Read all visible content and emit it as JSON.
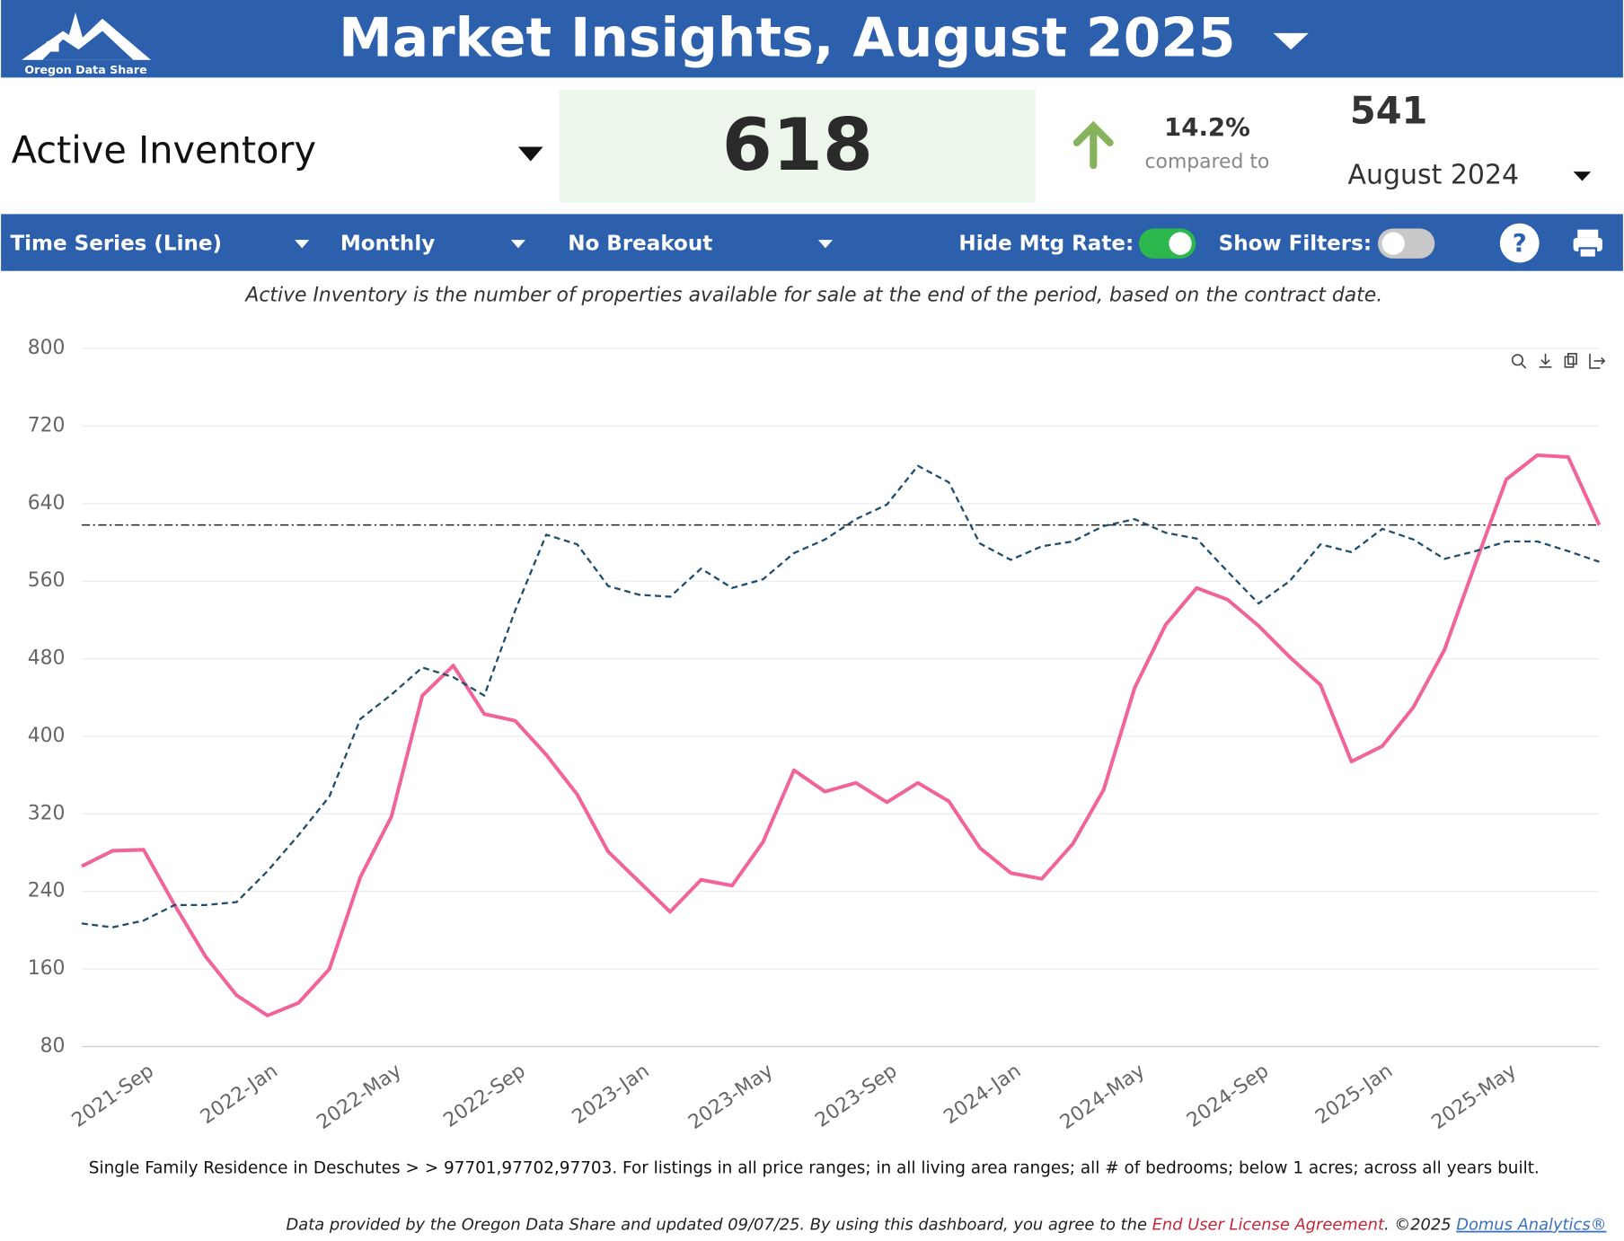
{
  "header": {
    "logo_text": "Oregon Data Share",
    "title": "Market Insights, August 2025"
  },
  "kpi": {
    "metric": "Active Inventory",
    "value": 618,
    "change": "14.2%",
    "compared_label": "compared to",
    "comparison_value": 541,
    "comparison_period": "August 2024"
  },
  "toolbar": {
    "chart_type": "Time Series (Line)",
    "frequency": "Monthly",
    "breakout": "No Breakout",
    "mtg_toggle": "Hide Mtg Rate:",
    "filters_toggle": "Show Filters:"
  },
  "description": "Active Inventory is the number of properties available for sale at the end of the period, based on the contract date.",
  "chart_data": {
    "type": "line",
    "categories": [
      null,
      null,
      "2021-Sep",
      null,
      null,
      null,
      "2022-Jan",
      null,
      null,
      null,
      "2022-May",
      null,
      null,
      null,
      "2022-Sep",
      null,
      null,
      null,
      "2023-Jan",
      null,
      null,
      null,
      "2023-May",
      null,
      null,
      null,
      "2023-Sep",
      null,
      null,
      null,
      "2024-Jan",
      null,
      null,
      null,
      "2024-May",
      null,
      null,
      null,
      "2024-Sep",
      null,
      null,
      null,
      "2025-Jan",
      null,
      null,
      null,
      "2025-May",
      null,
      null,
      null
    ],
    "series": [
      {
        "color": "#f0649a",
        "values": [
          266,
          282,
          283,
          226,
          173,
          133,
          112,
          125,
          160,
          255,
          317,
          442,
          473,
          423,
          416,
          381,
          340,
          281,
          250,
          219,
          252,
          246,
          291,
          365,
          343,
          352,
          332,
          352,
          333,
          285,
          259,
          253,
          289,
          345,
          450,
          515,
          553,
          541,
          514,
          482,
          453,
          374,
          390,
          430,
          489,
          578,
          665,
          690,
          688,
          618
        ]
      },
      {
        "color": "#1f4e6e",
        "dashed": true,
        "values": [
          207,
          203,
          210,
          226,
          226,
          229,
          261,
          298,
          338,
          418,
          443,
          471,
          461,
          442,
          530,
          608,
          598,
          555,
          546,
          544,
          573,
          553,
          562,
          589,
          603,
          624,
          639,
          679,
          662,
          599,
          582,
          596,
          601,
          617,
          624,
          610,
          604,
          570,
          537,
          560,
          598,
          590,
          614,
          603,
          583,
          591,
          601,
          601,
          591,
          580
        ]
      }
    ],
    "reference_line": 618,
    "ylim": [
      80,
      800
    ],
    "yticks": [
      80,
      160,
      240,
      320,
      400,
      480,
      560,
      640,
      720,
      800
    ],
    "grid": true
  },
  "caption": "Single Family Residence in Deschutes > > 97701,97702,97703. For listings in all price ranges; in all living area ranges; all # of bedrooms; below 1 acres; across all years built.",
  "footer": {
    "text": "Data provided by the Oregon Data Share and updated 09/07/25.  By using this dashboard, you agree to the ",
    "license_link": "End User License Agreement",
    "copyright": ".  ©2025 ",
    "company_link": "Domus Analytics®"
  }
}
